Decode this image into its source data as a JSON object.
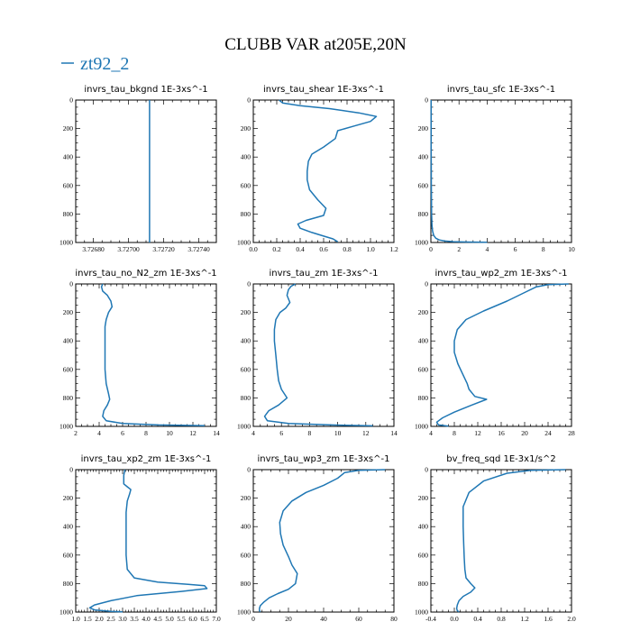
{
  "figure": {
    "title": "CLUBB VAR at205E,20N",
    "legend": {
      "label": "zt92_2",
      "color": "#1f77b4"
    },
    "series_color": "#1f77b4"
  },
  "chart_data": [
    {
      "type": "line",
      "title": "invrs_tau_bkgnd",
      "units": "1E-3xs^-1",
      "xlim": [
        3.7267,
        3.7275
      ],
      "ylim": [
        0,
        1000
      ],
      "y_inverted": true,
      "xticks": [
        3.7268,
        3.727,
        3.7272,
        3.7274
      ],
      "xtick_labels": [
        "3.72680",
        "3.72700",
        "3.72720",
        "3.72740"
      ],
      "yticks": [
        0,
        200,
        400,
        600,
        800,
        1000
      ],
      "series": [
        {
          "x": [
            3.72712,
            3.72712
          ],
          "y": [
            0,
            1000
          ]
        }
      ]
    },
    {
      "type": "line",
      "title": "invrs_tau_shear",
      "units": "1E-3xs^-1",
      "xlim": [
        0,
        1.2
      ],
      "ylim": [
        0,
        1000
      ],
      "y_inverted": true,
      "xticks": [
        0,
        0.2,
        0.4,
        0.6,
        0.8,
        1.0,
        1.2
      ],
      "xtick_labels": [
        "0.0",
        "0.2",
        "0.4",
        "0.6",
        "0.8",
        "1.0",
        "1.2"
      ],
      "yticks": [
        0,
        200,
        400,
        600,
        800,
        1000
      ],
      "series": [
        {
          "x": [
            0.22,
            0.25,
            0.4,
            0.65,
            0.9,
            1.05,
            1.0,
            0.85,
            0.72,
            0.7,
            0.6,
            0.5,
            0.47,
            0.46,
            0.46,
            0.48,
            0.55,
            0.62,
            0.6,
            0.45,
            0.38,
            0.4,
            0.5,
            0.6,
            0.68,
            0.72
          ],
          "y": [
            0,
            20,
            40,
            60,
            90,
            115,
            150,
            185,
            215,
            270,
            330,
            380,
            430,
            500,
            560,
            630,
            700,
            760,
            810,
            845,
            870,
            900,
            930,
            955,
            975,
            995
          ]
        }
      ]
    },
    {
      "type": "line",
      "title": "invrs_tau_sfc",
      "units": "1E-3xs^-1",
      "xlim": [
        0,
        10
      ],
      "ylim": [
        0,
        1000
      ],
      "y_inverted": true,
      "xticks": [
        0,
        2,
        4,
        6,
        8,
        10
      ],
      "xtick_labels": [
        "0",
        "2",
        "4",
        "6",
        "8",
        "10"
      ],
      "yticks": [
        0,
        200,
        400,
        600,
        800,
        1000
      ],
      "series": [
        {
          "x": [
            0.02,
            0.02,
            0.03,
            0.05,
            0.08,
            0.12,
            0.2,
            0.35,
            0.6,
            1.0,
            1.6,
            2.6,
            4.0
          ],
          "y": [
            0,
            300,
            600,
            800,
            880,
            920,
            950,
            970,
            982,
            990,
            994,
            997,
            999
          ]
        }
      ]
    },
    {
      "type": "line",
      "title": "invrs_tau_no_N2_zm",
      "units": "1E-3xs^-1",
      "xlim": [
        2,
        14
      ],
      "ylim": [
        0,
        1000
      ],
      "y_inverted": true,
      "xticks": [
        2,
        4,
        6,
        8,
        10,
        12,
        14
      ],
      "xtick_labels": [
        "2",
        "4",
        "6",
        "8",
        "10",
        "12",
        "14"
      ],
      "yticks": [
        0,
        200,
        400,
        600,
        800,
        1000
      ],
      "series": [
        {
          "x": [
            4.3,
            4.2,
            4.3,
            4.7,
            5.0,
            5.1,
            4.8,
            4.6,
            4.5,
            4.5,
            4.5,
            4.5,
            4.6,
            4.8,
            4.9,
            4.7,
            4.4,
            4.3,
            4.6,
            6.0,
            9.0,
            13.0
          ],
          "y": [
            0,
            20,
            50,
            80,
            120,
            160,
            200,
            250,
            300,
            400,
            500,
            600,
            700,
            770,
            810,
            850,
            890,
            930,
            960,
            980,
            990,
            995
          ]
        }
      ]
    },
    {
      "type": "line",
      "title": "invrs_tau_zm",
      "units": "1E-3xs^-1",
      "xlim": [
        4,
        14
      ],
      "ylim": [
        0,
        1000
      ],
      "y_inverted": true,
      "xticks": [
        4,
        6,
        8,
        10,
        12,
        14
      ],
      "xtick_labels": [
        "4",
        "6",
        "8",
        "10",
        "12",
        "14"
      ],
      "yticks": [
        0,
        200,
        400,
        600,
        800,
        1000
      ],
      "series": [
        {
          "x": [
            7.0,
            6.7,
            6.5,
            6.4,
            6.6,
            6.3,
            5.9,
            5.6,
            5.5,
            5.5,
            5.6,
            5.7,
            5.8,
            6.0,
            6.4,
            5.8,
            5.1,
            4.8,
            5.0,
            6.5,
            9.5,
            12.5
          ],
          "y": [
            0,
            15,
            40,
            80,
            130,
            170,
            200,
            250,
            320,
            400,
            500,
            600,
            680,
            740,
            800,
            850,
            890,
            930,
            960,
            980,
            990,
            996
          ]
        }
      ]
    },
    {
      "type": "line",
      "title": "invrs_tau_wp2_zm",
      "units": "1E-3xs^-1",
      "xlim": [
        4,
        28
      ],
      "ylim": [
        0,
        1000
      ],
      "y_inverted": true,
      "xticks": [
        4,
        8,
        12,
        16,
        20,
        24,
        28
      ],
      "xtick_labels": [
        "4",
        "8",
        "12",
        "16",
        "20",
        "24",
        "28"
      ],
      "yticks": [
        0,
        200,
        400,
        600,
        800,
        1000
      ],
      "series": [
        {
          "x": [
            27.5,
            24,
            22,
            20,
            17,
            13,
            10,
            8.5,
            8.0,
            8.0,
            8.6,
            9.5,
            10.2,
            10.5,
            11.5,
            13.5,
            11,
            8,
            6.0,
            5.0,
            5.3,
            7.0
          ],
          "y": [
            0,
            5,
            20,
            60,
            120,
            190,
            250,
            320,
            400,
            480,
            560,
            640,
            700,
            740,
            790,
            810,
            850,
            900,
            940,
            970,
            990,
            998
          ]
        }
      ]
    },
    {
      "type": "line",
      "title": "invrs_tau_xp2_zm",
      "units": "1E-3xs^-1",
      "xlim": [
        1.0,
        7.0
      ],
      "ylim": [
        0,
        1000
      ],
      "y_inverted": true,
      "xticks": [
        1.0,
        1.5,
        2.0,
        2.5,
        3.0,
        3.5,
        4.0,
        4.5,
        5.0,
        5.5,
        6.0,
        6.5,
        7.0
      ],
      "xtick_labels": [
        "1.0",
        "1.5",
        "2.0",
        "2.5",
        "3.0",
        "3.5",
        "4.0",
        "4.5",
        "5.0",
        "5.5",
        "6.0",
        "6.5",
        "7.0"
      ],
      "yticks": [
        0,
        200,
        400,
        600,
        800,
        1000
      ],
      "series": [
        {
          "x": [
            3.1,
            3.05,
            3.05,
            3.2,
            3.35,
            3.3,
            3.2,
            3.15,
            3.15,
            3.15,
            3.15,
            3.2,
            3.5,
            4.5,
            5.8,
            6.5,
            6.6,
            5.5,
            3.6,
            2.5,
            1.8,
            1.6,
            1.8,
            2.5,
            3.0
          ],
          "y": [
            0,
            40,
            100,
            120,
            140,
            170,
            220,
            300,
            400,
            500,
            600,
            700,
            760,
            790,
            805,
            815,
            835,
            855,
            885,
            920,
            950,
            970,
            985,
            995,
            999
          ]
        }
      ]
    },
    {
      "type": "line",
      "title": "invrs_tau_wp3_zm",
      "units": "1E-3xs^-1",
      "xlim": [
        0,
        80
      ],
      "ylim": [
        0,
        1000
      ],
      "y_inverted": true,
      "xticks": [
        0,
        20,
        40,
        60,
        80
      ],
      "xtick_labels": [
        "0",
        "20",
        "40",
        "60",
        "80"
      ],
      "yticks": [
        0,
        200,
        400,
        600,
        800,
        1000
      ],
      "series": [
        {
          "x": [
            75,
            60,
            52,
            48,
            40,
            30,
            22,
            17,
            15,
            15.5,
            17,
            20,
            22,
            25,
            24,
            20,
            14,
            9,
            6,
            4,
            3.5,
            3.5,
            4
          ],
          "y": [
            0,
            5,
            20,
            60,
            110,
            160,
            220,
            290,
            370,
            450,
            530,
            610,
            670,
            730,
            800,
            840,
            870,
            900,
            930,
            955,
            975,
            990,
            999
          ]
        }
      ]
    },
    {
      "type": "line",
      "title": "bv_freq_sqd",
      "units": "1E-3x1/s^2",
      "xlim": [
        -0.4,
        2.0
      ],
      "ylim": [
        0,
        1000
      ],
      "y_inverted": true,
      "xticks": [
        -0.4,
        0.0,
        0.4,
        0.8,
        1.2,
        1.6,
        2.0
      ],
      "xtick_labels": [
        "-0.4",
        "0.0",
        "0.4",
        "0.8",
        "1.2",
        "1.6",
        "2.0"
      ],
      "yticks": [
        0,
        200,
        400,
        600,
        800,
        1000
      ],
      "series": [
        {
          "x": [
            1.9,
            1.3,
            0.9,
            0.5,
            0.25,
            0.15,
            0.15,
            0.16,
            0.17,
            0.18,
            0.2,
            0.28,
            0.35,
            0.28,
            0.15,
            0.08,
            0.05,
            0.04,
            0.05,
            0.08
          ],
          "y": [
            0,
            5,
            25,
            80,
            160,
            260,
            400,
            520,
            620,
            700,
            760,
            800,
            830,
            860,
            890,
            920,
            950,
            975,
            990,
            999
          ]
        }
      ]
    }
  ]
}
